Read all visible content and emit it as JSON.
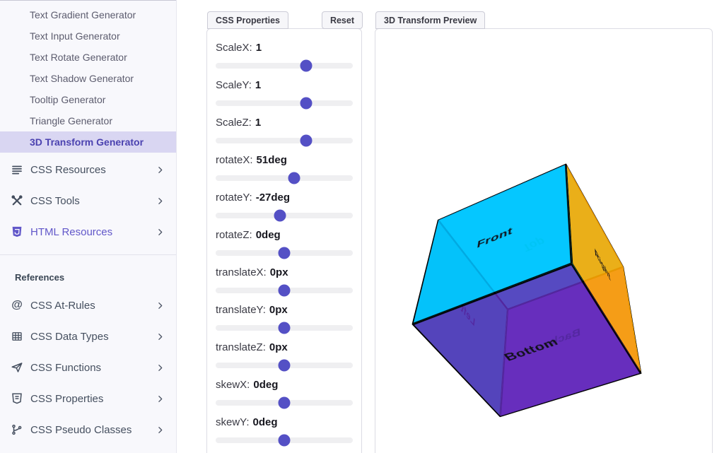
{
  "sidebar": {
    "generators": [
      {
        "label": "Text Gradient Generator",
        "active": false
      },
      {
        "label": "Text Input Generator",
        "active": false
      },
      {
        "label": "Text Rotate Generator",
        "active": false
      },
      {
        "label": "Text Shadow Generator",
        "active": false
      },
      {
        "label": "Tooltip Generator",
        "active": false
      },
      {
        "label": "Triangle Generator",
        "active": false
      },
      {
        "label": "3D Transform Generator",
        "active": true
      }
    ],
    "sections": [
      {
        "label": "CSS Resources",
        "icon": "lines-icon"
      },
      {
        "label": "CSS Tools",
        "icon": "tools-icon"
      },
      {
        "label": "HTML Resources",
        "icon": "html5-icon"
      }
    ],
    "references_heading": "References",
    "references": [
      {
        "label": "CSS At-Rules",
        "icon": "at-icon"
      },
      {
        "label": "CSS Data Types",
        "icon": "table-icon"
      },
      {
        "label": "CSS Functions",
        "icon": "send-icon"
      },
      {
        "label": "CSS Properties",
        "icon": "css-shield-icon"
      },
      {
        "label": "CSS Pseudo Classes",
        "icon": "branch-icon"
      }
    ],
    "active_item_bg": "#D9D6F2",
    "active_item_color": "#4B42B0",
    "highlight_color": "#6157C9"
  },
  "properties_panel": {
    "tab": "CSS Properties",
    "reset_label": "Reset",
    "accent_color": "#5450C5",
    "sliders": [
      {
        "name": "ScaleX:",
        "value": "1",
        "percent": 66
      },
      {
        "name": "ScaleY:",
        "value": "1",
        "percent": 66
      },
      {
        "name": "ScaleZ:",
        "value": "1",
        "percent": 66
      },
      {
        "name": "rotateX:",
        "value": "51deg",
        "percent": 57
      },
      {
        "name": "rotateY:",
        "value": "-27deg",
        "percent": 47
      },
      {
        "name": "rotateZ:",
        "value": "0deg",
        "percent": 50
      },
      {
        "name": "translateX:",
        "value": "0px",
        "percent": 50
      },
      {
        "name": "translateY:",
        "value": "0px",
        "percent": 50
      },
      {
        "name": "translateZ:",
        "value": "0px",
        "percent": 50
      },
      {
        "name": "skewX:",
        "value": "0deg",
        "percent": 50
      },
      {
        "name": "skewY:",
        "value": "0deg",
        "percent": 50
      }
    ]
  },
  "preview_panel": {
    "tab": "3D Transform Preview",
    "cube": {
      "transform": "rotateX(51deg) rotateY(-27deg)",
      "faces": [
        {
          "name": "front",
          "label": "Front",
          "color": "rgba(0,191,255,0.88)",
          "text_color": "#101018"
        },
        {
          "name": "back",
          "label": "Back",
          "color": "rgba(138,43,226,0.9)",
          "text_color": "#101018"
        },
        {
          "name": "right",
          "label": "Right",
          "color": "rgba(255,166,0,0.9)",
          "text_color": "#101018"
        },
        {
          "name": "left",
          "label": "Left",
          "color": "rgba(0,206,209,0.9)",
          "text_color": "#101018"
        },
        {
          "name": "top",
          "label": "Top",
          "color": "rgba(0,255,255,0.85)",
          "text_color": "#00E5A8"
        },
        {
          "name": "bottom",
          "label": "Bottom",
          "color": "rgba(94,42,182,0.85)",
          "text_color": "#101018"
        }
      ]
    }
  }
}
